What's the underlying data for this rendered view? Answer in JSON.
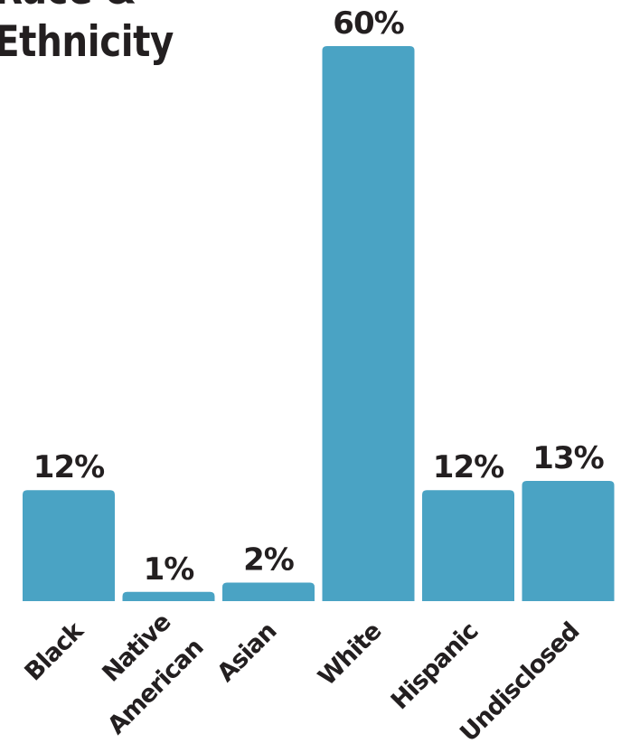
{
  "chart_data": {
    "type": "bar",
    "title": "Race & Ethnicity",
    "categories": [
      "Black",
      "Native American",
      "Asian",
      "White",
      "Hispanic",
      "Undisclosed"
    ],
    "values": [
      12,
      1,
      2,
      60,
      12,
      13
    ],
    "value_labels": [
      "12%",
      "1%",
      "2%",
      "60%",
      "12%",
      "13%"
    ],
    "unit": "%",
    "ylim": [
      0,
      60
    ],
    "grid": false,
    "bar_color": "#4aa3c4",
    "text_color": "#231f20"
  }
}
